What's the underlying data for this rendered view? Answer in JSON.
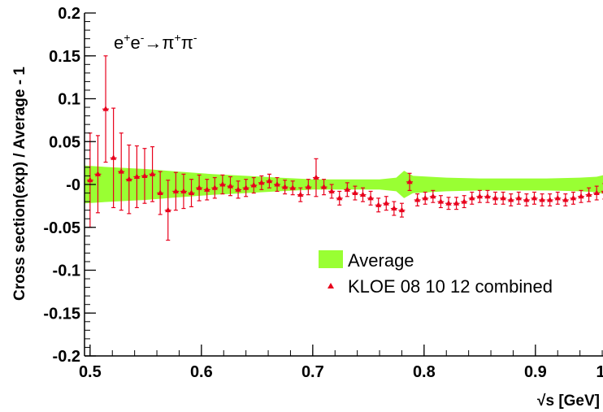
{
  "chart_data": {
    "type": "scatter",
    "annotation": {
      "base1": "e",
      "sup1": "+",
      "base2": "e",
      "sup2": "-",
      "arrow": "→π",
      "sup3": "+",
      "base3": "π",
      "sup4": "-"
    },
    "xlabel": "√s   [GeV]",
    "ylabel": "Cross section(exp) / Average - 1",
    "xlim": [
      0.495,
      0.99
    ],
    "ylim": [
      -0.2,
      0.2
    ],
    "x_ticks": [
      {
        "value": 0.5,
        "label": "0.5"
      },
      {
        "value": 0.6,
        "label": "0.6"
      },
      {
        "value": 0.7,
        "label": "0.7"
      },
      {
        "value": 0.8,
        "label": "0.8"
      },
      {
        "value": 0.9,
        "label": "0.9"
      },
      {
        "value": 1.0,
        "label": "1"
      }
    ],
    "y_ticks": [
      {
        "value": 0.2,
        "label": "0.2"
      },
      {
        "value": 0.15,
        "label": "0.15"
      },
      {
        "value": 0.1,
        "label": "0.1"
      },
      {
        "value": 0.05,
        "label": "0.05"
      },
      {
        "value": 0.0,
        "label": "-0"
      },
      {
        "value": -0.05,
        "label": "-0.05"
      },
      {
        "value": -0.1,
        "label": "-0.1"
      },
      {
        "value": -0.15,
        "label": "-0.15"
      },
      {
        "value": -0.2,
        "label": "-0.2"
      }
    ],
    "legend": {
      "position": "bottom-right",
      "entries": [
        {
          "label": "Average",
          "marker": "band",
          "color": "#99ff33"
        },
        {
          "label": "KLOE 08 10 12 combined",
          "marker": "triangle",
          "color": "#e8001c"
        }
      ]
    },
    "colors": {
      "band": "#99ff33",
      "points": "#e8001c",
      "axis": "#000000"
    },
    "band": {
      "name": "Average",
      "x": [
        0.495,
        0.52,
        0.55,
        0.58,
        0.61,
        0.64,
        0.67,
        0.7,
        0.73,
        0.76,
        0.775,
        0.782,
        0.79,
        0.82,
        0.85,
        0.88,
        0.91,
        0.94,
        0.955,
        0.965,
        0.972,
        0.98,
        0.99
      ],
      "lo": [
        -0.022,
        -0.02,
        -0.018,
        -0.015,
        -0.012,
        -0.01,
        -0.008,
        -0.006,
        -0.006,
        -0.006,
        -0.008,
        -0.016,
        -0.01,
        -0.008,
        -0.007,
        -0.007,
        -0.007,
        -0.008,
        -0.009,
        -0.012,
        -0.03,
        -0.038,
        -0.032
      ],
      "hi": [
        0.022,
        0.02,
        0.018,
        0.015,
        0.012,
        0.01,
        0.008,
        0.006,
        0.006,
        0.006,
        0.008,
        0.016,
        0.01,
        0.008,
        0.007,
        0.007,
        0.007,
        0.008,
        0.009,
        0.012,
        0.03,
        0.038,
        0.032
      ]
    },
    "series": [
      {
        "name": "KLOE 08 10 12 combined",
        "points": [
          [
            0.5,
            0.005,
            0.055
          ],
          [
            0.507,
            0.012,
            0.045
          ],
          [
            0.514,
            0.088,
            0.062
          ],
          [
            0.521,
            0.031,
            0.058
          ],
          [
            0.528,
            0.015,
            0.045
          ],
          [
            0.535,
            0.006,
            0.04
          ],
          [
            0.542,
            0.009,
            0.036
          ],
          [
            0.549,
            0.01,
            0.032
          ],
          [
            0.556,
            0.012,
            0.032
          ],
          [
            0.563,
            -0.01,
            0.025
          ],
          [
            0.57,
            -0.03,
            0.035
          ],
          [
            0.577,
            -0.008,
            0.022
          ],
          [
            0.584,
            -0.008,
            0.02
          ],
          [
            0.591,
            -0.01,
            0.016
          ],
          [
            0.598,
            -0.004,
            0.015
          ],
          [
            0.605,
            -0.006,
            0.012
          ],
          [
            0.612,
            -0.004,
            0.012
          ],
          [
            0.619,
            0.0,
            0.011
          ],
          [
            0.626,
            -0.002,
            0.011
          ],
          [
            0.633,
            -0.006,
            0.01
          ],
          [
            0.64,
            -0.004,
            0.01
          ],
          [
            0.647,
            -0.001,
            0.009
          ],
          [
            0.654,
            0.002,
            0.008
          ],
          [
            0.661,
            0.004,
            0.008
          ],
          [
            0.668,
            0.0,
            0.008
          ],
          [
            0.675,
            -0.003,
            0.008
          ],
          [
            0.682,
            -0.004,
            0.008
          ],
          [
            0.689,
            -0.012,
            0.008
          ],
          [
            0.696,
            -0.003,
            0.009
          ],
          [
            0.703,
            0.008,
            0.022
          ],
          [
            0.71,
            -0.003,
            0.009
          ],
          [
            0.717,
            -0.008,
            0.008
          ],
          [
            0.724,
            -0.016,
            0.008
          ],
          [
            0.731,
            -0.006,
            0.008
          ],
          [
            0.738,
            -0.01,
            0.008
          ],
          [
            0.745,
            -0.012,
            0.008
          ],
          [
            0.752,
            -0.016,
            0.008
          ],
          [
            0.759,
            -0.024,
            0.008
          ],
          [
            0.766,
            -0.022,
            0.008
          ],
          [
            0.773,
            -0.028,
            0.008
          ],
          [
            0.78,
            -0.03,
            0.008
          ],
          [
            0.787,
            0.003,
            0.01
          ],
          [
            0.794,
            -0.018,
            0.007
          ],
          [
            0.801,
            -0.016,
            0.007
          ],
          [
            0.808,
            -0.014,
            0.007
          ],
          [
            0.815,
            -0.02,
            0.007
          ],
          [
            0.822,
            -0.022,
            0.007
          ],
          [
            0.829,
            -0.022,
            0.007
          ],
          [
            0.836,
            -0.02,
            0.007
          ],
          [
            0.843,
            -0.016,
            0.007
          ],
          [
            0.85,
            -0.014,
            0.007
          ],
          [
            0.857,
            -0.014,
            0.007
          ],
          [
            0.864,
            -0.016,
            0.007
          ],
          [
            0.871,
            -0.016,
            0.007
          ],
          [
            0.878,
            -0.018,
            0.007
          ],
          [
            0.885,
            -0.016,
            0.007
          ],
          [
            0.892,
            -0.018,
            0.007
          ],
          [
            0.899,
            -0.016,
            0.007
          ],
          [
            0.906,
            -0.018,
            0.007
          ],
          [
            0.913,
            -0.018,
            0.007
          ],
          [
            0.92,
            -0.016,
            0.007
          ],
          [
            0.927,
            -0.018,
            0.007
          ],
          [
            0.934,
            -0.016,
            0.007
          ],
          [
            0.941,
            -0.014,
            0.007
          ],
          [
            0.948,
            -0.012,
            0.008
          ],
          [
            0.955,
            -0.01,
            0.008
          ],
          [
            0.962,
            -0.008,
            0.009
          ],
          [
            0.969,
            -0.004,
            0.012
          ],
          [
            0.976,
            -0.004,
            0.018
          ],
          [
            0.983,
            -0.002,
            0.024
          ]
        ]
      }
    ]
  }
}
